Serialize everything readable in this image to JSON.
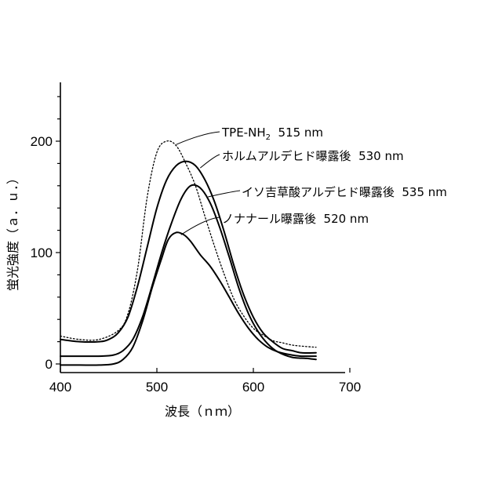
{
  "chart_data": {
    "type": "line",
    "xlabel": "波長（ｎｍ）",
    "ylabel": "蛍光強度（ａ．ｕ．）",
    "xlim": [
      400,
      700
    ],
    "ylim": [
      0,
      250
    ],
    "xticks": [
      400,
      500,
      600,
      700
    ],
    "yticks": [
      0,
      100,
      200
    ],
    "grid": false,
    "series": [
      {
        "style": "dotted",
        "points": [
          [
            400,
            25
          ],
          [
            420,
            22
          ],
          [
            440,
            22
          ],
          [
            460,
            30
          ],
          [
            470,
            45
          ],
          [
            480,
            85
          ],
          [
            490,
            150
          ],
          [
            500,
            190
          ],
          [
            510,
            200
          ],
          [
            520,
            196
          ],
          [
            530,
            180
          ],
          [
            540,
            160
          ],
          [
            550,
            132
          ],
          [
            560,
            105
          ],
          [
            570,
            80
          ],
          [
            580,
            58
          ],
          [
            590,
            43
          ],
          [
            600,
            32
          ],
          [
            610,
            26
          ],
          [
            620,
            21
          ],
          [
            630,
            19
          ],
          [
            640,
            17
          ],
          [
            650,
            16
          ],
          [
            665,
            15
          ]
        ]
      },
      {
        "style": "solid",
        "points": [
          [
            400,
            22
          ],
          [
            420,
            20
          ],
          [
            440,
            20
          ],
          [
            450,
            22
          ],
          [
            460,
            28
          ],
          [
            470,
            42
          ],
          [
            480,
            70
          ],
          [
            490,
            105
          ],
          [
            500,
            140
          ],
          [
            510,
            165
          ],
          [
            520,
            178
          ],
          [
            530,
            182
          ],
          [
            540,
            178
          ],
          [
            550,
            165
          ],
          [
            560,
            145
          ],
          [
            570,
            118
          ],
          [
            580,
            88
          ],
          [
            590,
            62
          ],
          [
            600,
            42
          ],
          [
            610,
            28
          ],
          [
            620,
            20
          ],
          [
            630,
            14
          ],
          [
            640,
            12
          ],
          [
            650,
            10
          ],
          [
            665,
            10
          ]
        ]
      },
      {
        "style": "solid",
        "points": [
          [
            400,
            7
          ],
          [
            420,
            7
          ],
          [
            440,
            7
          ],
          [
            455,
            8
          ],
          [
            465,
            12
          ],
          [
            475,
            22
          ],
          [
            485,
            42
          ],
          [
            495,
            70
          ],
          [
            505,
            100
          ],
          [
            515,
            126
          ],
          [
            525,
            148
          ],
          [
            535,
            160
          ],
          [
            545,
            158
          ],
          [
            555,
            145
          ],
          [
            565,
            123
          ],
          [
            575,
            96
          ],
          [
            585,
            68
          ],
          [
            595,
            45
          ],
          [
            605,
            29
          ],
          [
            615,
            18
          ],
          [
            625,
            11
          ],
          [
            640,
            6
          ],
          [
            655,
            5
          ],
          [
            665,
            4
          ]
        ]
      },
      {
        "style": "solid",
        "points": [
          [
            400,
            -1
          ],
          [
            420,
            -1
          ],
          [
            440,
            -1
          ],
          [
            455,
            0
          ],
          [
            465,
            4
          ],
          [
            475,
            15
          ],
          [
            485,
            38
          ],
          [
            495,
            68
          ],
          [
            505,
            95
          ],
          [
            512,
            112
          ],
          [
            520,
            118
          ],
          [
            528,
            116
          ],
          [
            535,
            110
          ],
          [
            545,
            98
          ],
          [
            555,
            88
          ],
          [
            565,
            75
          ],
          [
            575,
            60
          ],
          [
            585,
            45
          ],
          [
            595,
            32
          ],
          [
            605,
            22
          ],
          [
            615,
            15
          ],
          [
            625,
            11
          ],
          [
            640,
            8
          ],
          [
            650,
            7
          ],
          [
            665,
            7
          ]
        ]
      }
    ],
    "annotations": [
      {
        "text": "TPE-NH",
        "sub": "2",
        "after": "  515 nm",
        "anchor": [
          520,
          197
        ]
      },
      {
        "text": "ホルムアルデヒド曝露後  530 nm",
        "anchor": [
          545,
          176
        ]
      },
      {
        "text": "イソ吉草酸アルデヒド曝露後  535 nm",
        "anchor": [
          553,
          150
        ]
      },
      {
        "text": "ノナナール曝露後  520 nm",
        "anchor": [
          525,
          116
        ]
      }
    ]
  }
}
